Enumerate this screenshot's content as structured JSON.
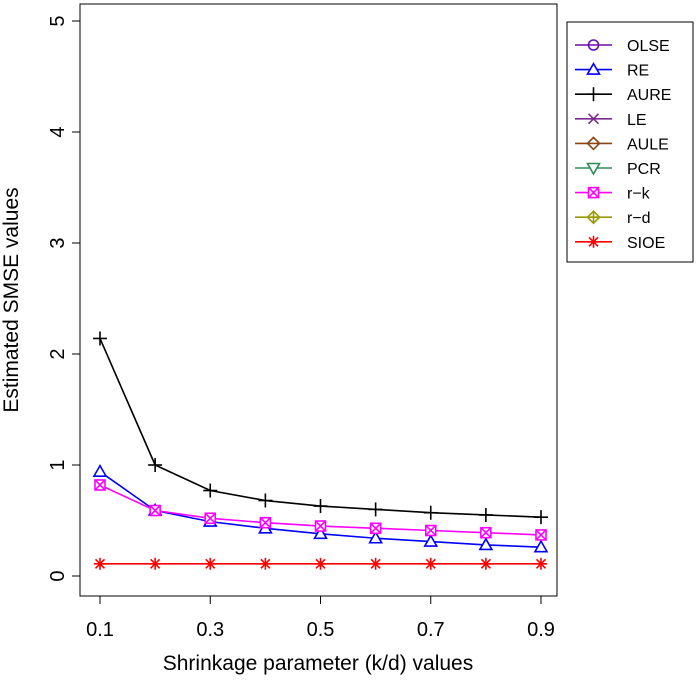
{
  "chart_data": {
    "type": "line",
    "xlabel": "Shrinkage parameter (k/d) values",
    "ylabel": "Estimated SMSE values",
    "x": [
      0.1,
      0.2,
      0.3,
      0.4,
      0.5,
      0.6,
      0.7,
      0.8,
      0.9
    ],
    "xlim": [
      0.1,
      0.9
    ],
    "ylim": [
      0,
      5
    ],
    "x_ticks": [
      0.1,
      0.3,
      0.5,
      0.7,
      0.9
    ],
    "x_tick_labels": [
      "0.1",
      "0.3",
      "0.5",
      "0.7",
      "0.9"
    ],
    "y_ticks": [
      0,
      1,
      2,
      3,
      4,
      5
    ],
    "y_tick_labels": [
      "0",
      "1",
      "2",
      "3",
      "4",
      "5"
    ],
    "grid": false,
    "legend_position": "top-right",
    "series": [
      {
        "name": "OLSE",
        "color": "#6a0dad",
        "marker": "circle",
        "values": null
      },
      {
        "name": "RE",
        "color": "#0000ff",
        "marker": "triangle-up",
        "values": [
          0.94,
          0.59,
          0.49,
          0.43,
          0.38,
          0.34,
          0.31,
          0.28,
          0.26
        ]
      },
      {
        "name": "AURE",
        "color": "#000000",
        "marker": "plus",
        "values": [
          2.14,
          1.0,
          0.77,
          0.68,
          0.63,
          0.6,
          0.57,
          0.55,
          0.53
        ]
      },
      {
        "name": "LE",
        "color": "#7b2d8e",
        "marker": "cross",
        "values": null
      },
      {
        "name": "AULE",
        "color": "#8b4513",
        "marker": "diamond",
        "values": null
      },
      {
        "name": "PCR",
        "color": "#2e8b57",
        "marker": "triangle-down",
        "values": null
      },
      {
        "name": "r−k",
        "color": "#ff00ff",
        "marker": "boxed-cross",
        "values": [
          0.82,
          0.59,
          0.52,
          0.48,
          0.45,
          0.43,
          0.41,
          0.39,
          0.37
        ]
      },
      {
        "name": "r−d",
        "color": "#9a9a00",
        "marker": "circle-plus",
        "values": null
      },
      {
        "name": "SIOE",
        "color": "#ff0000",
        "marker": "asterisk",
        "values": [
          0.11,
          0.11,
          0.11,
          0.11,
          0.11,
          0.11,
          0.11,
          0.11,
          0.11
        ]
      }
    ]
  }
}
